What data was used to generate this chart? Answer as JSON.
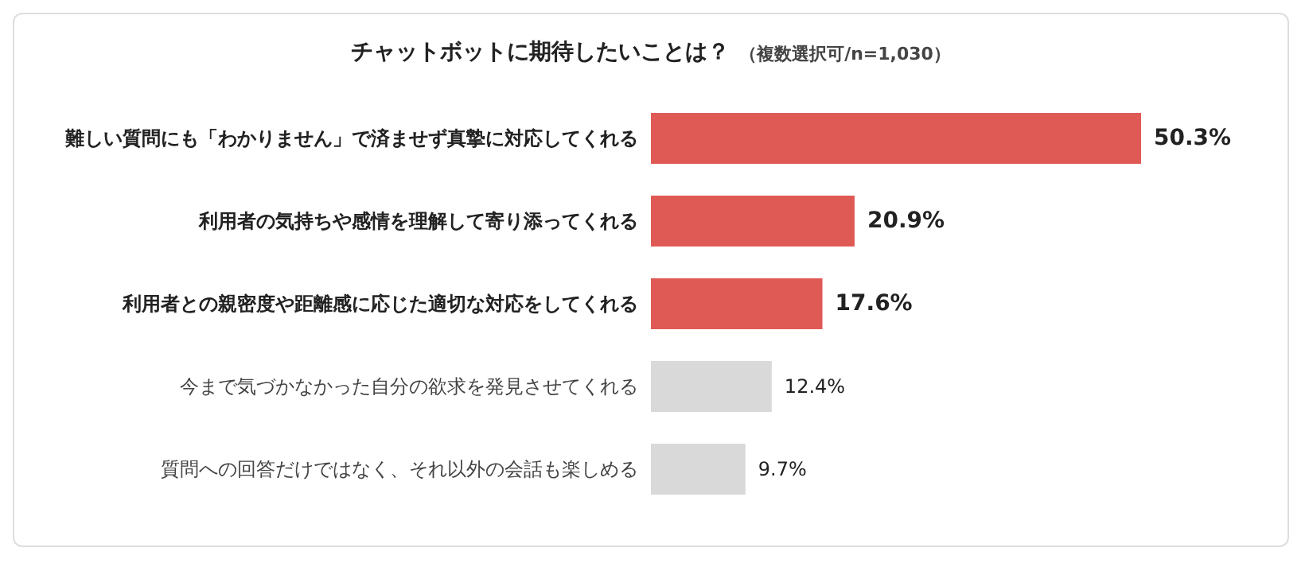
{
  "chart_data": {
    "type": "bar",
    "orientation": "horizontal",
    "title": "チャットボットに期待したいことは？",
    "subtitle": "（複数選択可/n=1,030）",
    "categories": [
      "難しい質問にも「わかりません」で済ませず真摯に対応してくれる",
      "利用者の気持ちや感情を理解して寄り添ってくれる",
      "利用者との親密度や距離感に応じた適切な対応をしてくれる",
      "今まで気づかなかった自分の欲求を発見させてくれる",
      "質問への回答だけではなく、それ以外の会話も楽しめる"
    ],
    "values": [
      50.3,
      20.9,
      17.6,
      12.4,
      9.7
    ],
    "value_labels": [
      "50.3%",
      "20.9%",
      "17.6%",
      "12.4%",
      "9.7%"
    ],
    "colors": [
      "#e05a55",
      "#e05a55",
      "#e05a55",
      "#d9d9d9",
      "#d9d9d9"
    ]
  }
}
